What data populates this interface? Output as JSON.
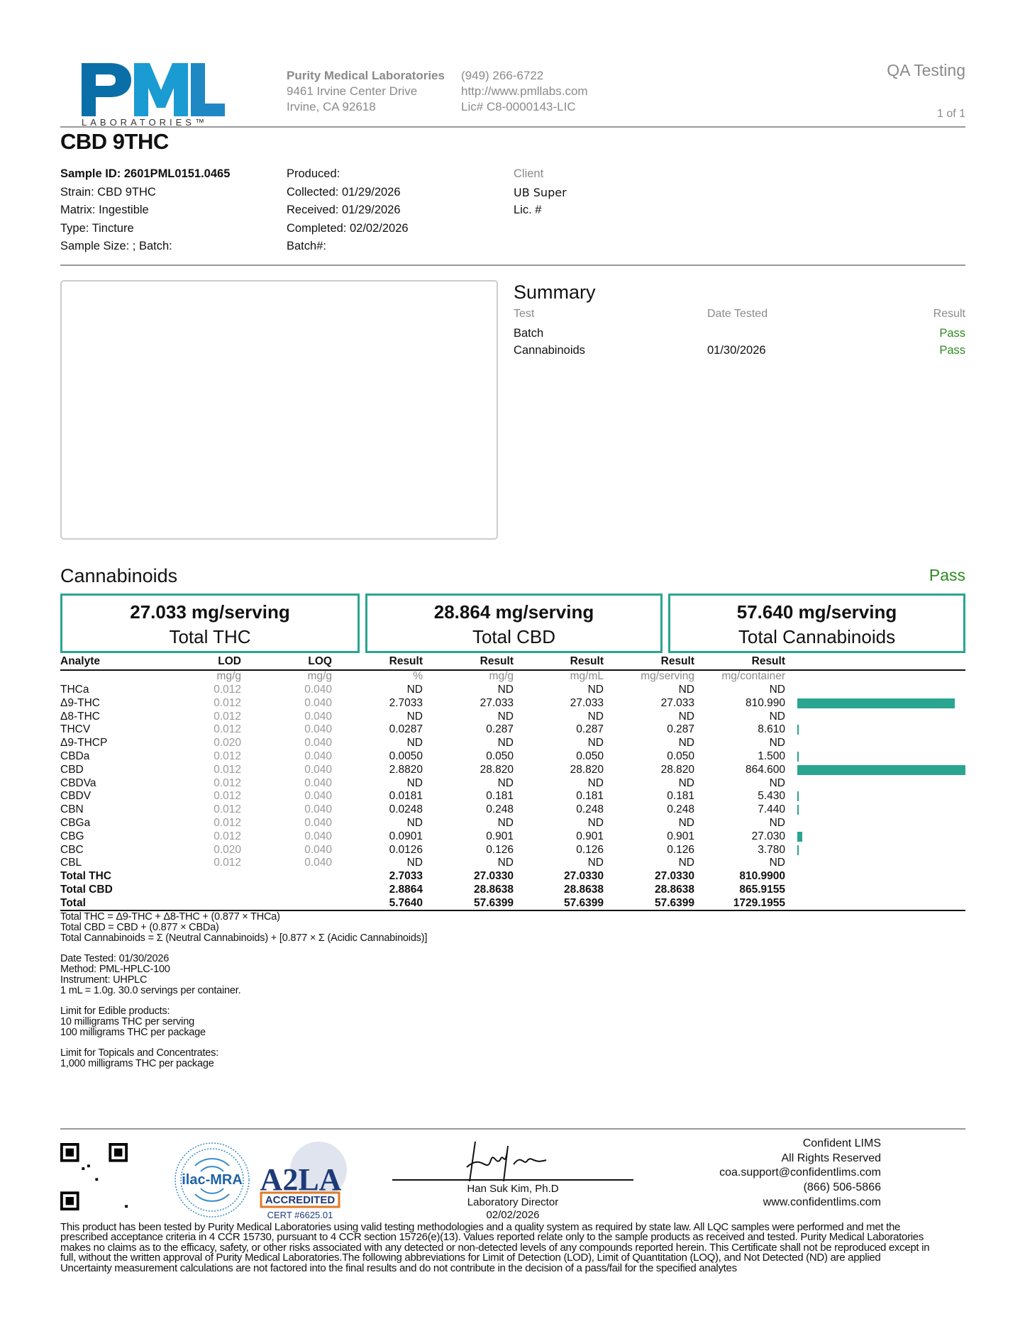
{
  "header": {
    "logo_text": "PML",
    "logo_sub": "LABORATORIES™",
    "company": "Purity Medical Laboratories",
    "address1": "9461 Irvine Center Drive",
    "address2": "Irvine, CA 92618",
    "phone": "(949) 266-6722",
    "website": "http://www.pmllabs.com",
    "license": "Lic# C8-0000143-LIC",
    "doc_type": "QA Testing",
    "page": "1 of 1"
  },
  "title": "CBD 9THC",
  "sample": {
    "col1": [
      "Sample ID: 2601PML0151.0465",
      "Strain: CBD 9THC",
      "Matrix: Ingestible",
      "Type: Tincture",
      "Sample Size: ; Batch:"
    ],
    "col2": [
      "Produced:",
      "Collected: 01/29/2026",
      "Received: 01/29/2026",
      "Completed: 02/02/2026",
      "Batch#:"
    ],
    "client_label": "Client",
    "client_name": "UB Super",
    "client_lic": "Lic. #"
  },
  "summary": {
    "title": "Summary",
    "headers": [
      "Test",
      "Date Tested",
      "Result"
    ],
    "rows": [
      {
        "test": "Batch",
        "date": "",
        "result": "Pass"
      },
      {
        "test": "Cannabinoids",
        "date": "01/30/2026",
        "result": "Pass"
      }
    ]
  },
  "colors": {
    "pass": "#2e8b22",
    "accent": "#2aa58f"
  },
  "cannabinoids": {
    "title": "Cannabinoids",
    "status": "Pass",
    "totals": [
      {
        "value": "27.033 mg/serving",
        "label": "Total THC"
      },
      {
        "value": "28.864 mg/serving",
        "label": "Total CBD"
      },
      {
        "value": "57.640 mg/serving",
        "label": "Total Cannabinoids"
      }
    ],
    "headers": [
      "Analyte",
      "LOD",
      "LOQ",
      "Result",
      "Result",
      "Result",
      "Result",
      "Result"
    ],
    "units": [
      "",
      "mg/g",
      "mg/g",
      "%",
      "mg/g",
      "mg/mL",
      "mg/serving",
      "mg/container"
    ],
    "rows": [
      [
        "THCa",
        "0.012",
        "0.040",
        "ND",
        "ND",
        "ND",
        "ND",
        "ND"
      ],
      [
        "Δ9-THC",
        "0.012",
        "0.040",
        "2.7033",
        "27.033",
        "27.033",
        "27.033",
        "810.990"
      ],
      [
        "Δ8-THC",
        "0.012",
        "0.040",
        "ND",
        "ND",
        "ND",
        "ND",
        "ND"
      ],
      [
        "THCV",
        "0.012",
        "0.040",
        "0.0287",
        "0.287",
        "0.287",
        "0.287",
        "8.610"
      ],
      [
        "Δ9-THCP",
        "0.020",
        "0.040",
        "ND",
        "ND",
        "ND",
        "ND",
        "ND"
      ],
      [
        "CBDa",
        "0.012",
        "0.040",
        "0.0050",
        "0.050",
        "0.050",
        "0.050",
        "1.500"
      ],
      [
        "CBD",
        "0.012",
        "0.040",
        "2.8820",
        "28.820",
        "28.820",
        "28.820",
        "864.600"
      ],
      [
        "CBDVa",
        "0.012",
        "0.040",
        "ND",
        "ND",
        "ND",
        "ND",
        "ND"
      ],
      [
        "CBDV",
        "0.012",
        "0.040",
        "0.0181",
        "0.181",
        "0.181",
        "0.181",
        "5.430"
      ],
      [
        "CBN",
        "0.012",
        "0.040",
        "0.0248",
        "0.248",
        "0.248",
        "0.248",
        "7.440"
      ],
      [
        "CBGa",
        "0.012",
        "0.040",
        "ND",
        "ND",
        "ND",
        "ND",
        "ND"
      ],
      [
        "CBG",
        "0.012",
        "0.040",
        "0.0901",
        "0.901",
        "0.901",
        "0.901",
        "27.030"
      ],
      [
        "CBC",
        "0.020",
        "0.040",
        "0.0126",
        "0.126",
        "0.126",
        "0.126",
        "3.780"
      ],
      [
        "CBL",
        "0.012",
        "0.040",
        "ND",
        "ND",
        "ND",
        "ND",
        "ND"
      ]
    ],
    "total_rows": [
      [
        "Total THC",
        "",
        "",
        "2.7033",
        "27.0330",
        "27.0330",
        "27.0330",
        "810.9900"
      ],
      [
        "Total CBD",
        "",
        "",
        "2.8864",
        "28.8638",
        "28.8638",
        "28.8638",
        "865.9155"
      ],
      [
        "Total",
        "",
        "",
        "5.7640",
        "57.6399",
        "57.6399",
        "57.6399",
        "1729.1955"
      ]
    ],
    "notes": [
      "Total THC = Δ9-THC + Δ8-THC + (0.877 × THCa)",
      "Total CBD = CBD + (0.877 × CBDa)",
      "Total Cannabinoids = Σ (Neutral Cannabinoids) + [0.877 × Σ (Acidic Cannabinoids)]",
      "",
      "Date Tested: 01/30/2026",
      "Method: PML-HPLC-100",
      "Instrument: UHPLC",
      "1 mL = 1.0g. 30.0 servings per container.",
      "",
      "Limit for Edible products:",
      "10 milligrams THC per serving",
      "100 milligrams THC per package",
      "",
      "Limit for Topicals and Concentrates:",
      "1,000 milligrams THC per package"
    ]
  },
  "footer": {
    "ilac_text": "ilac-MRA",
    "a2la_text": "A2LA",
    "accredited": "ACCREDITED",
    "cert": "CERT #6625.01",
    "signer": "Han Suk Kim, Ph.D",
    "signer_title": "Laboratory Director",
    "sign_date": "02/02/2026",
    "lims": [
      "Confident LIMS",
      "All Rights Reserved",
      "coa.support@confidentlims.com",
      "(866) 506-5866",
      "www.confidentlims.com"
    ],
    "disclaimer": [
      "This product has been tested by Purity Medical Laboratories using valid testing methodologies and a quality system as required by state law. All LQC samples were performed and met the",
      "prescribed acceptance criteria in 4 CCR 15730, pursuant to 4 CCR section 15726(e)(13). Values reported relate only to the sample products as received and tested. Purity Medical Laboratories",
      "makes no claims as to the efficacy, safety, or other risks associated with any detected or non-detected levels of any compounds reported herein. This Certificate shall not be reproduced except in",
      "full, without the written approval of Purity Medical Laboratories.The following abbreviations for Limit of Detection (LOD), Limit of Quantitation (LOQ), and Not Detected (ND) are applied",
      "Uncertainty measurement calculations are not factored into the final results and do not contribute in the decision of a pass/fail for the specified analytes"
    ]
  }
}
